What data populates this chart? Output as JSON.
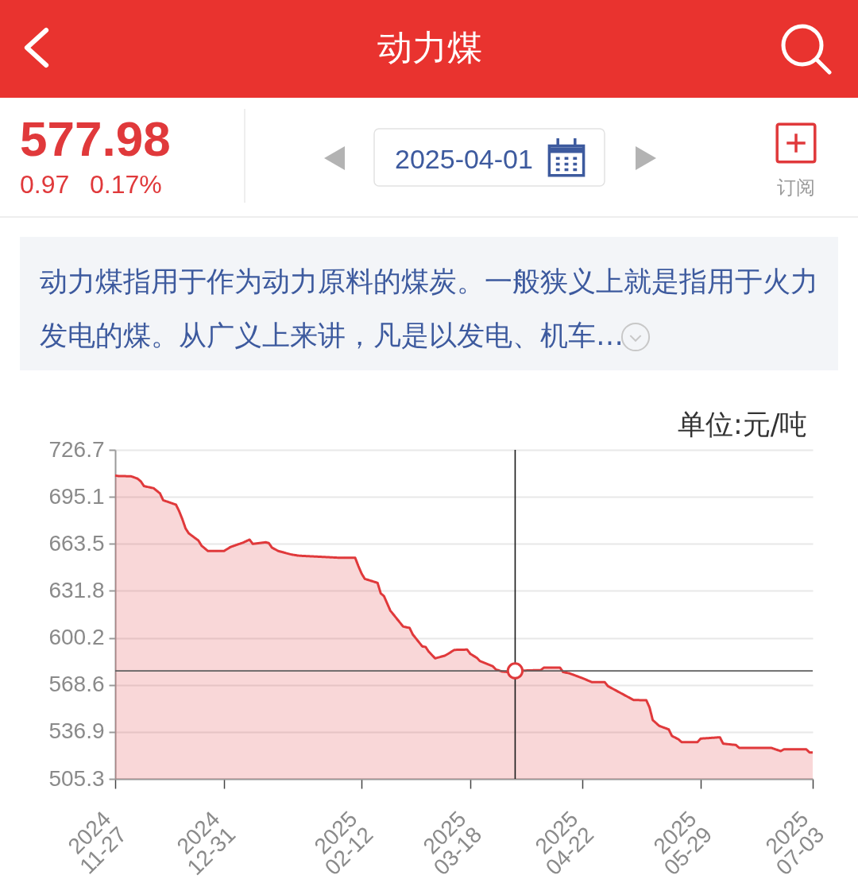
{
  "chart_data": {
    "type": "area",
    "title": "动力煤",
    "ylabel": "单位:元/吨",
    "annotations": [
      "577.98",
      "0.97",
      "0.17%",
      "2025-04-01",
      "订阅",
      "动力煤指用于作为动力原料的煤炭。一般狭义上就是指用于火力发电的煤。从广义上来讲，凡是以发电、机车…"
    ],
    "xlim": [
      "2024-11-27",
      "2025-07-03"
    ],
    "xticks": [
      {
        "value": "2024-11-27",
        "label": "2024\n11-27"
      },
      {
        "value": "2024-12-31",
        "label": "2024\n12-31"
      },
      {
        "value": "2025-02-12",
        "label": "2025\n02-12"
      },
      {
        "value": "2025-03-18",
        "label": "2025\n03-18"
      },
      {
        "value": "2025-04-22",
        "label": "2025\n04-22"
      },
      {
        "value": "2025-05-29",
        "label": "2025\n05-29"
      },
      {
        "value": "2025-07-03",
        "label": "2025\n07-03"
      }
    ],
    "ylim": [
      505.3,
      726.7
    ],
    "yticks": [
      505.3,
      536.9,
      568.6,
      600.2,
      631.8,
      663.5,
      695.1,
      726.7
    ],
    "grid": "y",
    "series": [
      {
        "color": "#e0393b",
        "x": [
          "2024-11-27",
          "2024-11-28",
          "2024-12-02",
          "2024-12-04",
          "2024-12-05",
          "2024-12-06",
          "2024-12-09",
          "2024-12-11",
          "2024-12-12",
          "2024-12-16",
          "2024-12-17",
          "2024-12-18",
          "2024-12-19",
          "2024-12-20",
          "2024-12-23",
          "2024-12-24",
          "2024-12-26",
          "2024-12-31",
          "2025-01-02",
          "2025-01-06",
          "2025-01-08",
          "2025-01-09",
          "2025-01-13",
          "2025-01-14",
          "2025-01-15",
          "2025-01-17",
          "2025-01-21",
          "2025-01-23",
          "2025-01-24",
          "2025-02-05",
          "2025-02-10",
          "2025-02-11",
          "2025-02-12",
          "2025-02-13",
          "2025-02-17",
          "2025-02-18",
          "2025-02-19",
          "2025-02-21",
          "2025-02-25",
          "2025-02-27",
          "2025-02-28",
          "2025-03-03",
          "2025-03-04",
          "2025-03-05",
          "2025-03-07",
          "2025-03-10",
          "2025-03-11",
          "2025-03-13",
          "2025-03-17",
          "2025-03-18",
          "2025-03-20",
          "2025-03-21",
          "2025-03-25",
          "2025-03-26",
          "2025-03-28",
          "2025-03-31",
          "2025-04-01",
          "2025-04-07",
          "2025-04-09",
          "2025-04-10",
          "2025-04-15",
          "2025-04-16",
          "2025-04-18",
          "2025-04-22",
          "2025-04-25",
          "2025-04-29",
          "2025-04-30",
          "2025-05-08",
          "2025-05-12",
          "2025-05-13",
          "2025-05-14",
          "2025-05-16",
          "2025-05-19",
          "2025-05-20",
          "2025-05-22",
          "2025-05-23",
          "2025-05-28",
          "2025-05-29",
          "2025-06-04",
          "2025-06-05",
          "2025-06-09",
          "2025-06-10",
          "2025-06-20",
          "2025-06-23",
          "2025-06-24",
          "2025-07-01",
          "2025-07-02",
          "2025-07-03"
        ],
        "values": [
          709.4,
          709.1,
          708.9,
          707.3,
          705.5,
          702.3,
          700.9,
          697.4,
          692.8,
          689.8,
          685.4,
          680.0,
          673.8,
          670.5,
          665.7,
          662.2,
          658.6,
          658.6,
          661.3,
          664.3,
          666.3,
          663.4,
          664.5,
          664.0,
          660.9,
          658.6,
          656.3,
          655.6,
          655.4,
          654.1,
          654.1,
          648.5,
          643.5,
          639.9,
          637.2,
          630.1,
          628.3,
          618.5,
          607.8,
          606.9,
          602.5,
          594.4,
          594.1,
          590.9,
          586.4,
          588.2,
          589.4,
          592.1,
          592.3,
          589.4,
          586.8,
          584.6,
          581.1,
          578.9,
          577.5,
          577.0,
          577.98,
          578.4,
          578.5,
          580.2,
          580.2,
          577.2,
          576.3,
          573.1,
          570.4,
          570.4,
          567.7,
          558.4,
          558.2,
          553.4,
          544.9,
          541.0,
          538.6,
          534.2,
          532.0,
          530.1,
          530.1,
          532.4,
          533.3,
          529.0,
          528.1,
          526.2,
          526.2,
          524.0,
          525.2,
          525.2,
          523.1,
          523.1
        ]
      },
      {
        "type": "scatter",
        "color": "#e0393b",
        "marker": "circle",
        "x": [
          "2025-04-01"
        ],
        "values": [
          577.98
        ]
      }
    ],
    "ref_lines": [
      {
        "axis": "x",
        "value": "2025-04-01",
        "color": "#1a1a1a"
      },
      {
        "axis": "y",
        "value": 577.98,
        "color": "#5f5f5f"
      }
    ]
  }
}
